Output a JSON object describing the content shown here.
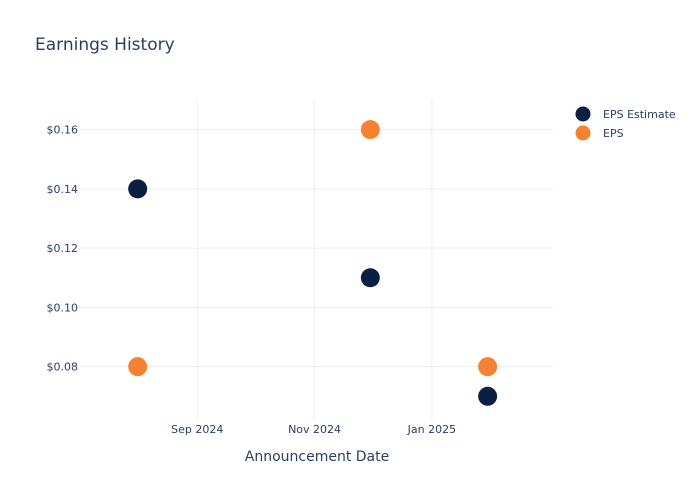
{
  "chart_data": {
    "type": "scatter",
    "title": "Earnings History",
    "xlabel": "Announcement Date",
    "ylabel": "",
    "x_ticks": [
      {
        "label": "Sep 2024",
        "date": "2024-09-01"
      },
      {
        "label": "Nov 2024",
        "date": "2024-11-01"
      },
      {
        "label": "Jan 2025",
        "date": "2025-01-01"
      }
    ],
    "y_ticks": [
      {
        "label": "$0.08",
        "value": 0.08
      },
      {
        "label": "$0.10",
        "value": 0.1
      },
      {
        "label": "$0.12",
        "value": 0.12
      },
      {
        "label": "$0.14",
        "value": 0.14
      },
      {
        "label": "$0.16",
        "value": 0.16
      }
    ],
    "xlim": [
      "2024-07-02",
      "2025-03-05"
    ],
    "ylim": [
      0.062,
      0.17
    ],
    "grid": true,
    "legend_position": "top-right",
    "series": [
      {
        "name": "EPS Estimate",
        "color": "#0b1f42",
        "points": [
          {
            "x": "2024-08-01",
            "y": 0.14
          },
          {
            "x": "2024-11-30",
            "y": 0.11
          },
          {
            "x": "2025-01-30",
            "y": 0.07
          }
        ]
      },
      {
        "name": "EPS",
        "color": "#f58233",
        "points": [
          {
            "x": "2024-08-01",
            "y": 0.08
          },
          {
            "x": "2024-11-30",
            "y": 0.16
          },
          {
            "x": "2025-01-30",
            "y": 0.08
          }
        ]
      }
    ]
  }
}
